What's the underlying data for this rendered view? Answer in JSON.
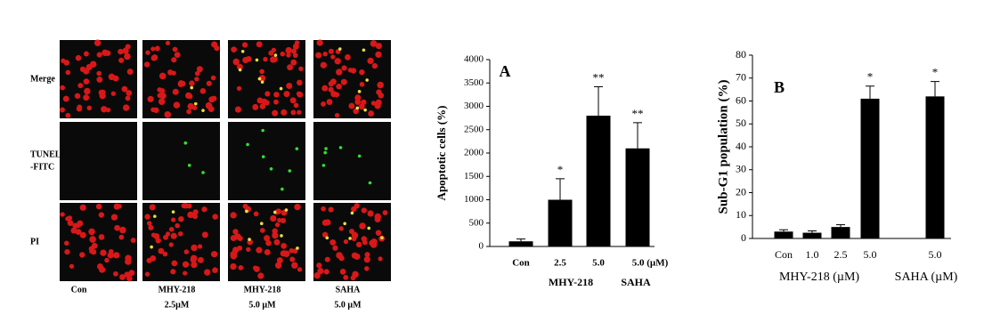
{
  "micrographs": {
    "rows": [
      [
        "Merge"
      ],
      [
        "TUNEL",
        "-FITC"
      ],
      [
        "PI"
      ]
    ],
    "columns": [
      [
        "Con"
      ],
      [
        "MHY-218",
        "2.5µM"
      ],
      [
        "MHY-218",
        "5.0 µM"
      ],
      [
        "SAHA",
        "5.0 µM"
      ]
    ]
  },
  "chart_data": [
    {
      "type": "bar",
      "panel_label": "A",
      "y_label": "Apoptotic cells (%)",
      "categories": [
        "Con",
        "2.5",
        "5.0",
        "5.0 (µM)"
      ],
      "values": [
        110,
        1000,
        2800,
        2100
      ],
      "errors": [
        50,
        450,
        620,
        550
      ],
      "significance": [
        null,
        "*",
        "**",
        "**"
      ],
      "groups": [
        "MHY-218",
        "SAHA"
      ],
      "color": "#000000",
      "ylim": [
        0,
        4000
      ],
      "yticks": [
        0,
        500,
        1000,
        1500,
        2000,
        2500,
        3000,
        3500,
        4000
      ]
    },
    {
      "type": "bar",
      "panel_label": "B",
      "y_label": "Sub-G1 population (%)",
      "categories": [
        "Con",
        "1.0",
        "2.5",
        "5.0",
        null,
        "5.0"
      ],
      "values": [
        3,
        2.5,
        5,
        61,
        null,
        62
      ],
      "errors": [
        0.8,
        0.8,
        1,
        5.5,
        null,
        6.5
      ],
      "significance": [
        null,
        null,
        null,
        "*",
        null,
        "*"
      ],
      "groups": [
        "MHY-218 (µM)",
        "SAHA (µM)"
      ],
      "color": "#000000",
      "ylim": [
        0,
        80
      ],
      "yticks": [
        0,
        10,
        20,
        30,
        40,
        50,
        60,
        70,
        80
      ]
    }
  ]
}
